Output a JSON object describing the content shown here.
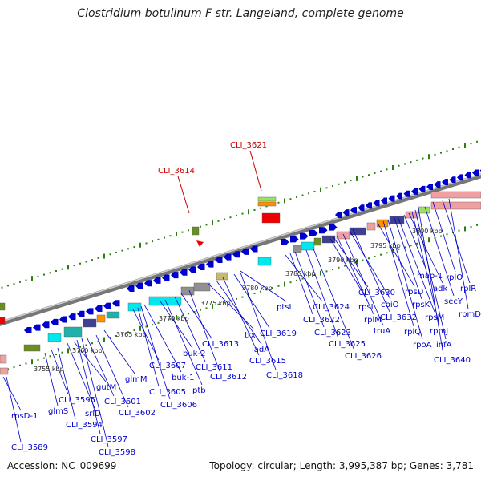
{
  "title": "Clostridium botulinum F str. Langeland, complete genome",
  "footer": {
    "accession": "Accession: NC_009699",
    "topology": "Topology: circular; Length: 3,995,387 bp; Genes: 3,781"
  },
  "colors": {
    "backbone": "#8a8a8a",
    "gene_blue": "#0000cc",
    "label_blue": "#0000cc",
    "label_red": "#cc0000",
    "tick_green": "#2e7d10",
    "cyan": "#00e8ee",
    "teal": "#20b2aa",
    "olive": "#6b8e23",
    "salmon": "#f0a0a0",
    "purple": "#404090",
    "orange": "#ff9000",
    "gray": "#909090",
    "red": "#ee0000",
    "tan": "#c8b870",
    "light_green": "#a0e060"
  },
  "scale_labels": [
    "3755 kbp",
    "3760 kbp",
    "3765 kbp",
    "3770 kbp",
    "3775 kbp",
    "3780 kbp",
    "3785 kbp",
    "3790 kbp",
    "3795 kbp",
    "3800 kbp"
  ],
  "top_labels": [
    {
      "text": "CLI_3614",
      "color": "label_red"
    },
    {
      "text": "CLI_3621",
      "color": "label_red"
    }
  ],
  "gene_labels": [
    "rpsD-1",
    "CLI_3589",
    "glmS",
    "CLI_3595",
    "srlD",
    "CLI_3594",
    "gutM",
    "CLI_3597",
    "CLI_3598",
    "CLI_3601",
    "CLI_3602",
    "glmM",
    "CLI_3607",
    "CLI_3605",
    "buk-1",
    "CLI_3606",
    "buk-2",
    "ptb",
    "CLI_3611",
    "CLI_3613",
    "CLI_3612",
    "trx",
    "iadA",
    "CLI_3615",
    "CLI_3619",
    "ptsI",
    "CLI_3618",
    "CLI_3624",
    "CLI_3622",
    "CLI_3623",
    "CLI_3625",
    "CLI_3626",
    "rpsI",
    "CLI_3630",
    "rplM",
    "truA",
    "cbiO",
    "CLI_3632",
    "rpsD",
    "rplQ",
    "rpoA",
    "rpsK",
    "rpsM",
    "map-1",
    "adk",
    "rpmJ",
    "infA",
    "CLI_3640",
    "secY",
    "rplO",
    "rplR",
    "rpmD"
  ]
}
